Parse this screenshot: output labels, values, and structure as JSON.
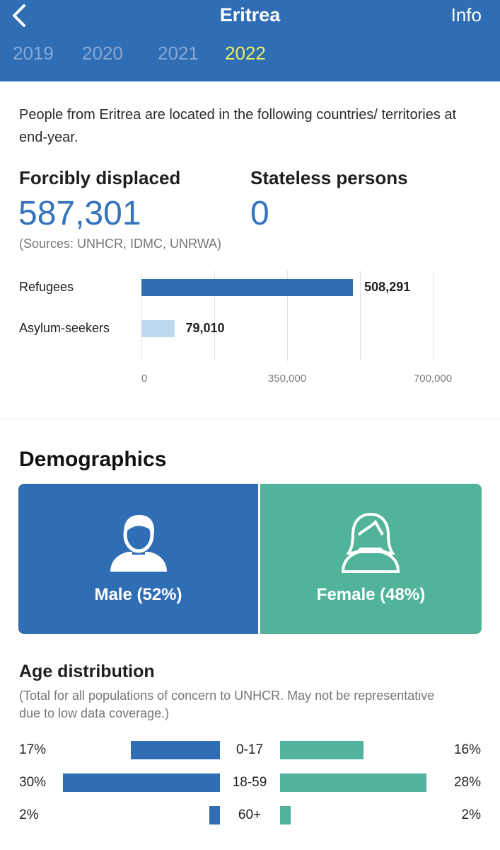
{
  "header": {
    "title": "Eritrea",
    "info_label": "Info",
    "years": [
      "2019",
      "2020",
      "2021",
      "2022"
    ],
    "selected_year": "2022",
    "background": "#2f6db5",
    "active_year_color": "#eef060"
  },
  "intro": "People from Eritrea are located in the following countries/ territories at end-year.",
  "stats": {
    "forcibly_displaced_label": "Forcibly displaced",
    "forcibly_displaced_value": "587,301",
    "stateless_label": "Stateless persons",
    "stateless_value": "0",
    "sources": "(Sources: UNHCR, IDMC, UNRWA)"
  },
  "chart_data": {
    "type": "bar",
    "orientation": "horizontal",
    "categories": [
      "Refugees",
      "Asylum-seekers"
    ],
    "values": [
      508291,
      79010
    ],
    "value_labels": [
      "508,291",
      "79,010"
    ],
    "colors": [
      "#2f6db5",
      "#bdd7ef"
    ],
    "xlim": [
      0,
      700000
    ],
    "ticks": [
      0,
      350000,
      700000
    ],
    "tick_labels": [
      "0",
      "350,000",
      "700,000"
    ],
    "grid": true
  },
  "demographics": {
    "title": "Demographics",
    "male_label": "Male (52%)",
    "female_label": "Female (48%)",
    "male_color": "#2f6db5",
    "female_color": "#52b39b",
    "male_icon": "male-person-icon",
    "female_icon": "female-person-icon"
  },
  "age_distribution": {
    "title": "Age distribution",
    "note": "(Total for all populations of concern to UNHCR. May not be representative due to low data coverage.)",
    "scale_max_pct": 30,
    "rows": [
      {
        "group": "0-17",
        "male_label": "17%",
        "male": 17,
        "female_label": "16%",
        "female": 16
      },
      {
        "group": "18-59",
        "male_label": "30%",
        "male": 30,
        "female_label": "28%",
        "female": 28
      },
      {
        "group": "60+",
        "male_label": "2%",
        "male": 2,
        "female_label": "2%",
        "female": 2
      }
    ]
  }
}
